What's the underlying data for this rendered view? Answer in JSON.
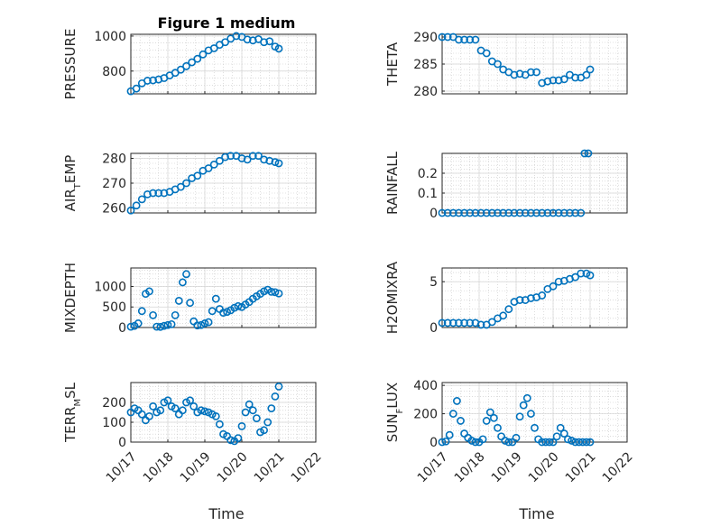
{
  "figure": {
    "title": "Figure 1 medium",
    "xlabel": "Time",
    "marker_color": "#0072bd",
    "xtick_labels": [
      "10/17",
      "10/18",
      "10/19",
      "10/20",
      "10/21",
      "10/22"
    ]
  },
  "chart_data": [
    {
      "type": "scatter",
      "marker": "o",
      "title": "Figure 1 medium",
      "ylabel": "PRESSURE",
      "xlabel": "",
      "xlim": [
        0,
        5
      ],
      "ylim": [
        670,
        1010
      ],
      "grid": true,
      "yticks": [
        800,
        1000
      ],
      "ytick_labels": [
        "800",
        "1000"
      ],
      "x": [
        0.0,
        0.15,
        0.3,
        0.45,
        0.6,
        0.75,
        0.9,
        1.05,
        1.2,
        1.35,
        1.5,
        1.65,
        1.8,
        1.95,
        2.1,
        2.25,
        2.4,
        2.55,
        2.7,
        2.85,
        3.0,
        3.15,
        3.3,
        3.45,
        3.6,
        3.75,
        3.9,
        4.0
      ],
      "y": [
        685,
        700,
        730,
        745,
        747,
        752,
        760,
        775,
        790,
        808,
        828,
        850,
        870,
        895,
        918,
        930,
        950,
        965,
        985,
        1000,
        995,
        980,
        975,
        982,
        965,
        970,
        940,
        928
      ]
    },
    {
      "type": "scatter",
      "marker": "o",
      "ylabel": "THETA",
      "xlabel": "",
      "xlim": [
        0,
        5
      ],
      "ylim": [
        279.5,
        290.5
      ],
      "grid": true,
      "yticks": [
        280,
        285,
        290
      ],
      "ytick_labels": [
        "280",
        "285",
        "290"
      ],
      "x": [
        0.0,
        0.15,
        0.3,
        0.45,
        0.6,
        0.75,
        0.9,
        1.05,
        1.2,
        1.35,
        1.5,
        1.65,
        1.8,
        1.95,
        2.1,
        2.25,
        2.4,
        2.55,
        2.7,
        2.85,
        3.0,
        3.15,
        3.3,
        3.45,
        3.6,
        3.75,
        3.9,
        4.0
      ],
      "y": [
        290,
        290,
        290,
        289.5,
        289.5,
        289.5,
        289.5,
        287.5,
        287,
        285.5,
        285,
        284,
        283.5,
        283,
        283.2,
        283,
        283.5,
        283.5,
        281.5,
        281.8,
        282,
        282,
        282.2,
        283,
        282.5,
        282.5,
        283,
        284
      ]
    },
    {
      "type": "scatter",
      "marker": "o",
      "ylabel": "AIR_TEMP",
      "xlabel": "",
      "xlim": [
        0,
        5
      ],
      "ylim": [
        258,
        282
      ],
      "grid": true,
      "yticks": [
        260,
        270,
        280
      ],
      "ytick_labels": [
        "260",
        "270",
        "280"
      ],
      "x": [
        0.0,
        0.15,
        0.3,
        0.45,
        0.6,
        0.75,
        0.9,
        1.05,
        1.2,
        1.35,
        1.5,
        1.65,
        1.8,
        1.95,
        2.1,
        2.25,
        2.4,
        2.55,
        2.7,
        2.85,
        3.0,
        3.15,
        3.3,
        3.45,
        3.6,
        3.75,
        3.9,
        4.0
      ],
      "y": [
        259,
        261,
        263.5,
        265.5,
        266,
        266,
        266,
        266.5,
        267.5,
        268.5,
        270,
        272,
        273,
        275,
        276,
        277.5,
        279,
        280.5,
        281,
        281,
        280,
        279.5,
        281,
        281,
        279.5,
        279,
        278.5,
        278
      ]
    },
    {
      "type": "scatter",
      "marker": "o",
      "ylabel": "RAINFALL",
      "xlabel": "",
      "xlim": [
        0,
        5
      ],
      "ylim": [
        0,
        0.3
      ],
      "grid": true,
      "yticks": [
        0,
        0.1,
        0.2
      ],
      "ytick_labels": [
        "0",
        "0.1",
        "0.2"
      ],
      "x": [
        0.0,
        0.15,
        0.3,
        0.45,
        0.6,
        0.75,
        0.9,
        1.05,
        1.2,
        1.35,
        1.5,
        1.65,
        1.8,
        1.95,
        2.1,
        2.25,
        2.4,
        2.55,
        2.7,
        2.85,
        3.0,
        3.15,
        3.3,
        3.45,
        3.6,
        3.75,
        3.85,
        3.95
      ],
      "y": [
        0,
        0,
        0,
        0,
        0,
        0,
        0,
        0,
        0,
        0,
        0,
        0,
        0,
        0,
        0,
        0,
        0,
        0,
        0,
        0,
        0,
        0,
        0,
        0,
        0,
        0,
        0.3,
        0.3
      ]
    },
    {
      "type": "scatter",
      "marker": "o",
      "ylabel": "MIXDEPTH",
      "xlabel": "",
      "xlim": [
        0,
        5
      ],
      "ylim": [
        0,
        1450
      ],
      "grid": true,
      "yticks": [
        0,
        500,
        1000
      ],
      "ytick_labels": [
        "0",
        "500",
        "1000"
      ],
      "x": [
        0.0,
        0.1,
        0.2,
        0.3,
        0.4,
        0.5,
        0.6,
        0.7,
        0.8,
        0.9,
        1.0,
        1.1,
        1.2,
        1.3,
        1.4,
        1.5,
        1.6,
        1.7,
        1.8,
        1.9,
        2.0,
        2.1,
        2.2,
        2.3,
        2.4,
        2.5,
        2.6,
        2.7,
        2.8,
        2.9,
        3.0,
        3.1,
        3.2,
        3.3,
        3.4,
        3.5,
        3.6,
        3.7,
        3.8,
        3.9,
        4.0
      ],
      "y": [
        20,
        40,
        100,
        400,
        820,
        880,
        300,
        20,
        15,
        40,
        60,
        80,
        300,
        650,
        1100,
        1300,
        600,
        150,
        50,
        60,
        100,
        130,
        400,
        700,
        450,
        360,
        380,
        420,
        480,
        520,
        500,
        560,
        620,
        700,
        760,
        820,
        880,
        920,
        870,
        860,
        830
      ]
    },
    {
      "type": "scatter",
      "marker": "o",
      "ylabel": "H2OMIXRA",
      "xlabel": "",
      "xlim": [
        0,
        5
      ],
      "ylim": [
        0,
        6.5
      ],
      "grid": true,
      "yticks": [
        0,
        5
      ],
      "ytick_labels": [
        "0",
        "5"
      ],
      "x": [
        0.0,
        0.15,
        0.3,
        0.45,
        0.6,
        0.75,
        0.9,
        1.05,
        1.2,
        1.35,
        1.5,
        1.65,
        1.8,
        1.95,
        2.1,
        2.25,
        2.4,
        2.55,
        2.7,
        2.85,
        3.0,
        3.15,
        3.3,
        3.45,
        3.6,
        3.75,
        3.9,
        4.0
      ],
      "y": [
        0.5,
        0.5,
        0.5,
        0.5,
        0.5,
        0.5,
        0.5,
        0.3,
        0.3,
        0.6,
        1.0,
        1.3,
        2.0,
        2.8,
        3.0,
        3.0,
        3.2,
        3.3,
        3.5,
        4.2,
        4.5,
        5.0,
        5.1,
        5.3,
        5.5,
        5.9,
        5.9,
        5.7
      ]
    },
    {
      "type": "scatter",
      "marker": "o",
      "ylabel": "TERR_MSL",
      "xlabel": "Time",
      "xlim": [
        0,
        5
      ],
      "ylim": [
        0,
        300
      ],
      "grid": true,
      "yticks": [
        0,
        100,
        200
      ],
      "ytick_labels": [
        "0",
        "100",
        "200"
      ],
      "xtick_labels": [
        "10/17",
        "10/18",
        "10/19",
        "10/20",
        "10/21",
        "10/22"
      ],
      "x": [
        0.0,
        0.1,
        0.2,
        0.3,
        0.4,
        0.5,
        0.6,
        0.7,
        0.8,
        0.9,
        1.0,
        1.1,
        1.2,
        1.3,
        1.4,
        1.5,
        1.6,
        1.7,
        1.8,
        1.9,
        2.0,
        2.1,
        2.2,
        2.3,
        2.4,
        2.5,
        2.6,
        2.7,
        2.8,
        2.9,
        3.0,
        3.1,
        3.2,
        3.3,
        3.4,
        3.5,
        3.6,
        3.7,
        3.8,
        3.9,
        4.0
      ],
      "y": [
        150,
        170,
        160,
        140,
        110,
        130,
        180,
        150,
        160,
        200,
        210,
        180,
        170,
        140,
        160,
        200,
        210,
        180,
        150,
        160,
        155,
        150,
        140,
        130,
        90,
        40,
        30,
        10,
        5,
        20,
        80,
        150,
        190,
        160,
        120,
        50,
        60,
        100,
        170,
        230,
        280
      ]
    },
    {
      "type": "scatter",
      "marker": "o",
      "ylabel": "SUN_FLUX",
      "xlabel": "Time",
      "xlim": [
        0,
        5
      ],
      "ylim": [
        0,
        420
      ],
      "grid": true,
      "yticks": [
        0,
        200,
        400
      ],
      "ytick_labels": [
        "0",
        "200",
        "400"
      ],
      "xtick_labels": [
        "10/17",
        "10/18",
        "10/19",
        "10/20",
        "10/21",
        "10/22"
      ],
      "x": [
        0.0,
        0.1,
        0.2,
        0.3,
        0.4,
        0.5,
        0.6,
        0.7,
        0.8,
        0.9,
        1.0,
        1.1,
        1.2,
        1.3,
        1.4,
        1.5,
        1.6,
        1.7,
        1.8,
        1.9,
        2.0,
        2.1,
        2.2,
        2.3,
        2.4,
        2.5,
        2.6,
        2.7,
        2.8,
        2.9,
        3.0,
        3.1,
        3.2,
        3.3,
        3.4,
        3.5,
        3.6,
        3.7,
        3.8,
        3.9,
        4.0
      ],
      "y": [
        0,
        5,
        50,
        200,
        290,
        150,
        60,
        30,
        10,
        0,
        0,
        20,
        150,
        210,
        170,
        100,
        40,
        10,
        0,
        0,
        30,
        180,
        260,
        310,
        200,
        100,
        20,
        0,
        0,
        0,
        0,
        40,
        100,
        60,
        20,
        10,
        0,
        0,
        0,
        0,
        0
      ]
    }
  ]
}
